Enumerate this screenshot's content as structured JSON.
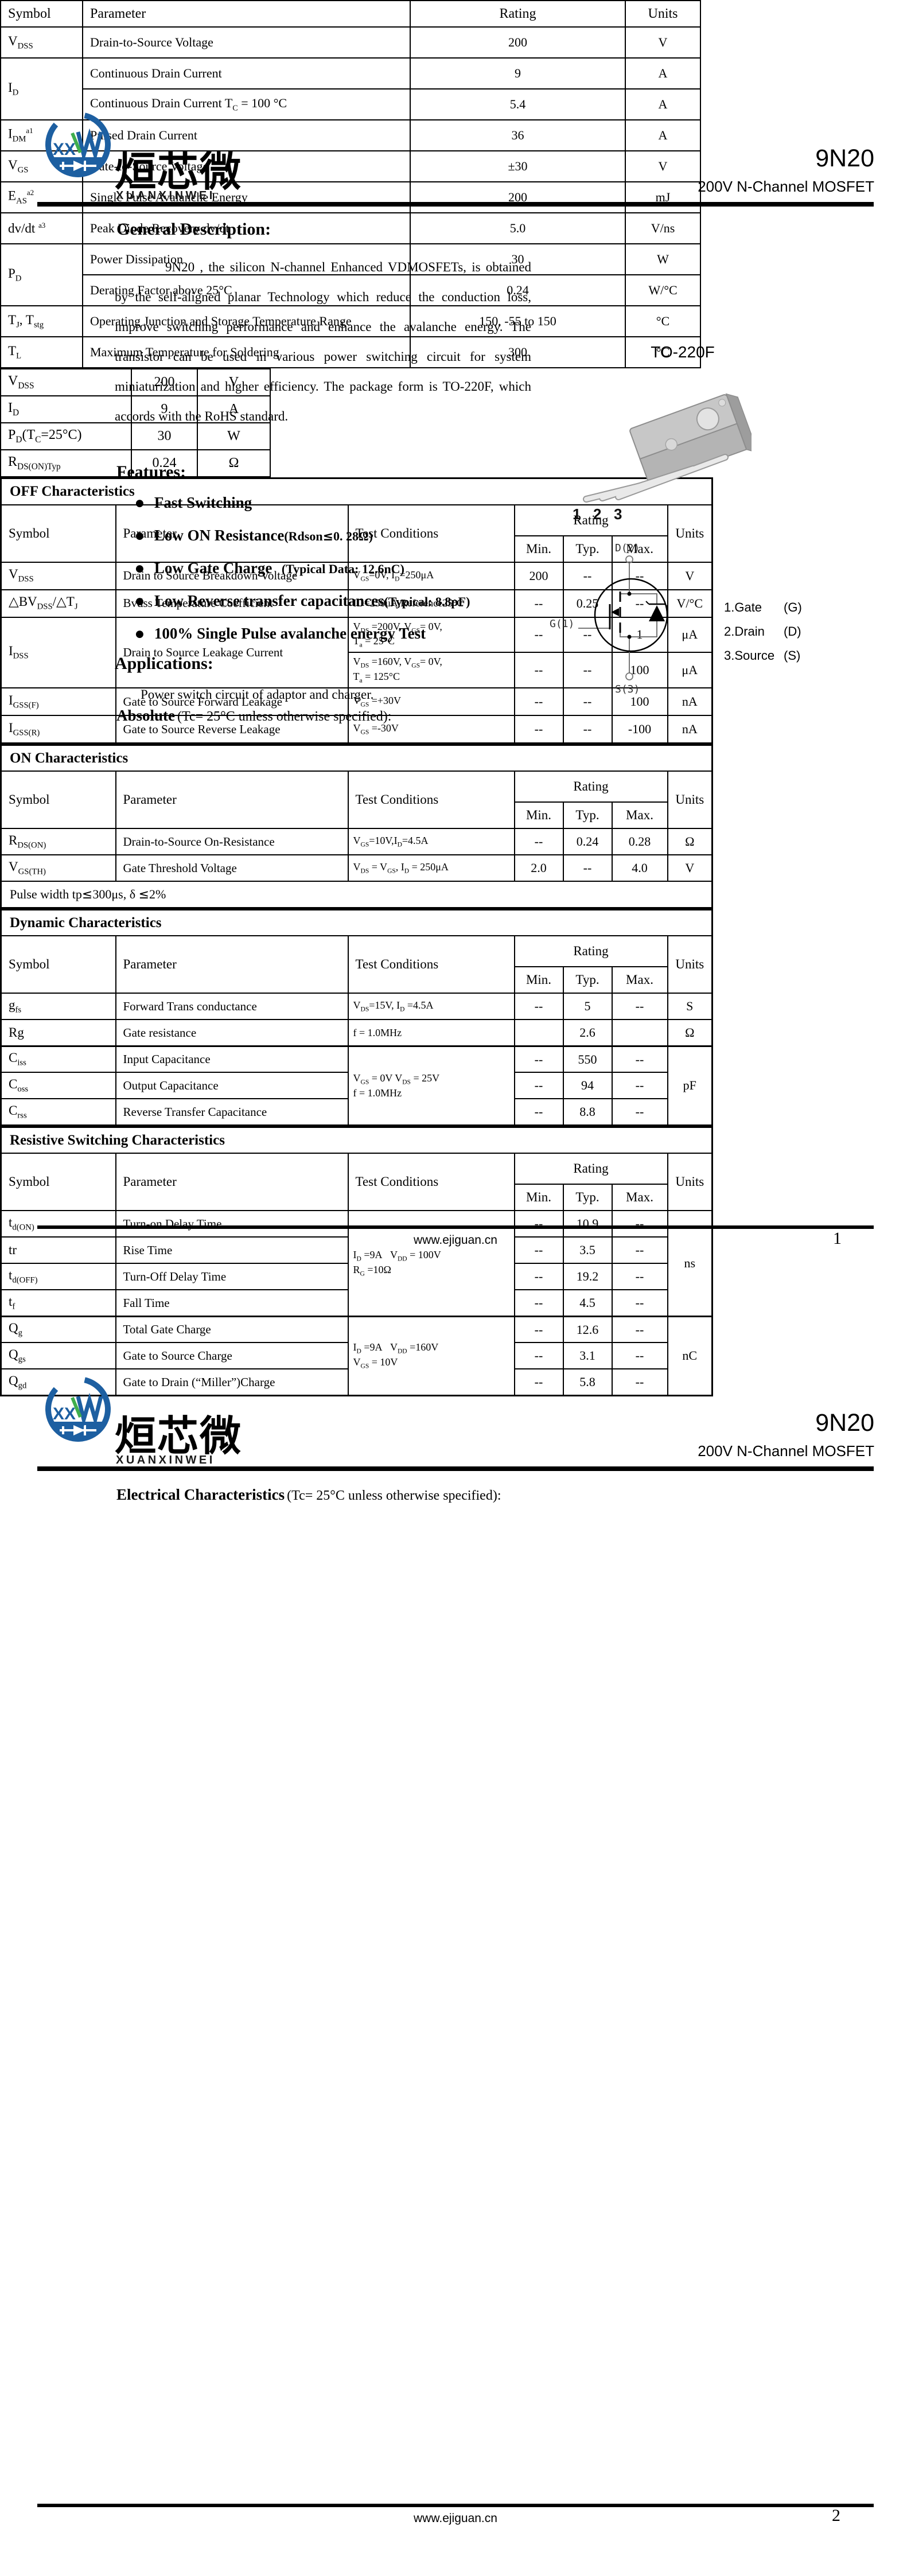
{
  "brand": {
    "cn": "烜芯微",
    "en": "XUANXINWEI",
    "initials": "XX"
  },
  "header": {
    "part": "9N20",
    "subtitle": "200V N-Channel MOSFET"
  },
  "footer": {
    "url": "www.ejiguan.cn",
    "page1": "1",
    "page2": "2"
  },
  "page1": {
    "general_title": "General Description:",
    "general_text": "9N20 , the silicon N-channel Enhanced VDMOSFETs, is obtained by the self-aligned planar Technology which reduce the conduction loss, improve switching performance and enhance the avalanche energy. The transistor can be used in various power switching circuit for system miniaturization and higher efficiency. The package form is TO-220F, which accords with the RoHS standard.",
    "features_title": "Features:",
    "features": [
      "Fast Switching",
      "Low ON Resistance<span class=\"bn\">(Rdson<span class=\"dj\">≤</span>0. 28Ω)</span>",
      "Low Gate Charge<span class=\"bn\">&nbsp;&nbsp;&nbsp;(Typical Data: 12.6nC)</span>",
      "Low Reverse transfer capacitances<span class=\"bn\">(Typical: 8.8pF)</span>",
      "100% Single Pulse avalanche energy Test"
    ],
    "applications_title": "Applications:",
    "applications_text": "Power switch circuit of adaptor and charger.",
    "absolute_bold": "Absolute",
    "absolute_rest": "(Tc= 25°C  unless otherwise specified):",
    "package_label": "TO-220F",
    "pins": [
      "1",
      "2",
      "3"
    ],
    "sym": {
      "d": "D(2)",
      "g": "G(1)",
      "s": "S(3)"
    },
    "legend": [
      {
        "n": "1.Gate",
        "s": "(G)"
      },
      {
        "n": "2.Drain",
        "s": "(D)"
      },
      {
        "n": "3.Source",
        "s": "(S)"
      }
    ],
    "spec_rows": [
      [
        {
          "h": "V<sub>DSS</sub>",
          "cl": "al"
        },
        "200",
        "V"
      ],
      [
        {
          "h": "I<sub>D</sub>",
          "cl": "al"
        },
        "9",
        "A"
      ],
      [
        {
          "h": "P<sub>D</sub>(T<sub>C</sub>=25°C)",
          "cl": "al"
        },
        "30",
        "W"
      ],
      [
        {
          "h": "R<sub>DS(ON)Typ</sub>",
          "cl": "al"
        },
        "0.24",
        "Ω"
      ]
    ],
    "abs_headers": [
      "Symbol",
      "Parameter",
      "Rating",
      "Units"
    ],
    "abs_rows": [
      [
        {
          "h": "V<sub>DSS</sub>",
          "cl": "al sy"
        },
        {
          "h": "Drain-to-Source Voltage",
          "cl": "al pa"
        },
        "200",
        "V"
      ],
      [
        {
          "h": "I<sub>D</sub>",
          "cl": "al sy",
          "rs": 2
        },
        {
          "h": "Continuous Drain Current",
          "cl": "al pa"
        },
        "9",
        "A"
      ],
      [
        {
          "h": "Continuous Drain Current T<sub>C</sub> = 100 °C",
          "cl": "al pa"
        },
        "5.4",
        "A"
      ],
      [
        {
          "h": "I<sub>DM</sub><sup class=\"an\">a1</sup>",
          "cl": "al sy"
        },
        {
          "h": "Pulsed Drain Current",
          "cl": "al pa"
        },
        "36",
        "A"
      ],
      [
        {
          "h": "V<sub>GS</sub>",
          "cl": "al sy"
        },
        {
          "h": "Gate-to-Source Voltage",
          "cl": "al pa"
        },
        "±30",
        "V"
      ],
      [
        {
          "h": "E<sub>AS</sub><sup class=\"an\">a2</sup>",
          "cl": "al sy"
        },
        {
          "h": "Single Pulse Avalanche Energy",
          "cl": "al pa"
        },
        "200",
        "mJ"
      ],
      [
        {
          "h": "dv/dt <sup class=\"an\">a3</sup>",
          "cl": "al sy"
        },
        {
          "h": "Peak Diode Recovery dv/dt",
          "cl": "al pa"
        },
        "5.0",
        "V/ns"
      ],
      [
        {
          "h": "P<sub>D</sub>",
          "cl": "al sy",
          "rs": 2
        },
        {
          "h": "Power Dissipation",
          "cl": "al pa"
        },
        "30",
        "W"
      ],
      [
        {
          "h": "Derating Factor above 25°C",
          "cl": "al pa"
        },
        "0.24",
        "W/°C"
      ],
      [
        {
          "h": "T<sub>J</sub>, T<sub>stg</sub>",
          "cl": "al sy"
        },
        {
          "h": "Operating Junction and Storage Temperature Range",
          "cl": "al pa"
        },
        "150, -55 to 150",
        "°C"
      ],
      [
        {
          "h": "T<sub>L</sub>",
          "cl": "al sy"
        },
        {
          "h": "Maximum Temperature for Soldering",
          "cl": "al pa"
        },
        "300",
        "°C"
      ]
    ]
  },
  "page2": {
    "elec_bold": "Electrical Characteristics",
    "elec_rest": "(Tc= 25°C  unless otherwise specified):",
    "cols": {
      "symbol": "Symbol",
      "parameter": "Parameter",
      "test": "Test Conditions",
      "rating": "Rating",
      "min": "Min.",
      "typ": "Typ.",
      "max": "Max.",
      "units": "Units"
    },
    "off": {
      "title": "OFF Characteristics",
      "rows": [
        [
          {
            "h": "V<sub>DSS</sub>",
            "cl": "al sy"
          },
          {
            "h": "Drain to Source Breakdown Voltage",
            "cl": "al pa"
          },
          {
            "h": "V<sub>GS</sub>=0V, I<sub>D</sub>=250μA",
            "cl": "al tc"
          },
          "200",
          "--",
          "--",
          "V"
        ],
        [
          {
            "h": "<span class=\"dj\">△</span>BV<sub>DSS</sub>/<span class=\"dj\">△</span>T<sub>J</sub>",
            "cl": "al sy"
          },
          {
            "h": "Bvdss Temperature Coefficient",
            "cl": "al pa"
          },
          {
            "h": "ID=250uA,Reference25°C",
            "cl": "al tc"
          },
          "--",
          "0.25",
          "--",
          "V/°C"
        ],
        {
          "cls": "h60",
          "cells": [
            {
              "h": "I<sub>DSS</sub>",
              "cl": "al sy",
              "rs": 2
            },
            {
              "h": "Drain to Source Leakage Current",
              "cl": "al pa",
              "rs": 2
            },
            {
              "h": "V<sub>DS</sub> =200V, V<sub>GS</sub>= 0V,<br>T<sub>a</sub> = 25°C",
              "cl": "al tc"
            },
            "--",
            "--",
            "1",
            "μA"
          ]
        },
        {
          "cls": "h60",
          "cells": [
            {
              "h": "V<sub>DS</sub> =160V, V<sub>GS</sub>= 0V,<br>T<sub>a</sub> = 125°C",
              "cl": "al tc"
            },
            "--",
            "--",
            "100",
            "μA"
          ]
        },
        [
          {
            "h": "I<sub>GSS(F)</sub>",
            "cl": "al sy"
          },
          {
            "h": "Gate to Source Forward Leakage",
            "cl": "al pa"
          },
          {
            "h": "V<sub>GS</sub> =+30V",
            "cl": "al tc"
          },
          "--",
          "--",
          "100",
          "nA"
        ],
        [
          {
            "h": "I<sub>GSS(R)</sub>",
            "cl": "al sy"
          },
          {
            "h": "Gate to Source Reverse Leakage",
            "cl": "al pa"
          },
          {
            "h": "V<sub>GS</sub> =-30V",
            "cl": "al tc"
          },
          "--",
          "--",
          "-100",
          "nA"
        ]
      ]
    },
    "on": {
      "title": "ON Characteristics",
      "rows": [
        [
          {
            "h": "R<sub>DS(ON)</sub>",
            "cl": "al sy"
          },
          {
            "h": "Drain-to-Source On-Resistance",
            "cl": "al pa"
          },
          {
            "h": "V<sub>GS</sub>=10V,I<sub>D</sub>=4.5A",
            "cl": "al tc"
          },
          "--",
          "0.24",
          "0.28",
          "Ω"
        ],
        [
          {
            "h": "V<sub>GS(TH)</sub>",
            "cl": "al sy"
          },
          {
            "h": "Gate Threshold Voltage",
            "cl": "al pa"
          },
          {
            "h": "V<sub>DS</sub> = V<sub>GS</sub>, I<sub>D</sub> = 250μA",
            "cl": "al tc"
          },
          "2.0",
          "--",
          "4.0",
          "V"
        ],
        [
          {
            "h": "Pulse width tp<span class=\"dj\">≤</span>300μs, δ <span class=\"dj\">≤</span>2%",
            "cs": 7,
            "cl": "note"
          }
        ]
      ]
    },
    "dyn": {
      "title": "Dynamic Characteristics",
      "rows": [
        [
          {
            "h": "g<sub>fs</sub>",
            "cl": "al sy"
          },
          {
            "h": "Forward Trans conductance",
            "cl": "al pa"
          },
          {
            "h": "V<sub>DS</sub>=15V, I<sub>D</sub> =4.5A",
            "cl": "al tc"
          },
          "--",
          "5",
          "--",
          "S"
        ],
        [
          {
            "h": "Rg",
            "cl": "al sy"
          },
          {
            "h": "Gate resistance",
            "cl": "al pa"
          },
          {
            "h": "f = 1.0MHz",
            "cl": "al tc"
          },
          "",
          "2.6",
          "",
          "Ω"
        ],
        {
          "cls": "hsep",
          "cells": [
            {
              "h": "C<sub>iss</sub>",
              "cl": "al sy"
            },
            {
              "h": "Input Capacitance",
              "cl": "al pa"
            },
            {
              "h": "V<sub>GS</sub> = 0V V<sub>DS</sub> = 25V<br>f = 1.0MHz",
              "cl": "al tc",
              "rs": 3
            },
            "--",
            "550",
            "--",
            {
              "h": "pF",
              "rs": 3
            }
          ]
        },
        [
          {
            "h": "C<sub>oss</sub>",
            "cl": "al sy"
          },
          {
            "h": "Output Capacitance",
            "cl": "al pa"
          },
          "--",
          "94",
          "--"
        ],
        [
          {
            "h": "C<sub>rss</sub>",
            "cl": "al sy"
          },
          {
            "h": "Reverse Transfer Capacitance",
            "cl": "al pa"
          },
          "--",
          "8.8",
          "--"
        ]
      ]
    },
    "res": {
      "title": "Resistive Switching Characteristics",
      "rows": [
        [
          {
            "h": "t<sub>d(ON)</sub>",
            "cl": "al sy"
          },
          {
            "h": "Turn-on Delay Time",
            "cl": "al pa"
          },
          {
            "h": "I<sub>D</sub> =9A&nbsp;&nbsp;&nbsp;V<sub>DD</sub> = 100V<br>R<sub>G</sub> =10Ω",
            "cl": "al tc",
            "rs": 4
          },
          "--",
          "10.9",
          "--",
          {
            "h": "ns",
            "rs": 4
          }
        ],
        [
          {
            "h": "tr",
            "cl": "al sy"
          },
          {
            "h": "Rise Time",
            "cl": "al pa"
          },
          "--",
          "3.5",
          "--"
        ],
        [
          {
            "h": "t<sub>d(OFF)</sub>",
            "cl": "al sy"
          },
          {
            "h": "Turn-Off Delay Time",
            "cl": "al pa"
          },
          "--",
          "19.2",
          "--"
        ],
        [
          {
            "h": "t<sub>f</sub>",
            "cl": "al sy"
          },
          {
            "h": "Fall Time",
            "cl": "al pa"
          },
          "--",
          "4.5",
          "--"
        ],
        {
          "cls": "hsep",
          "cells": [
            {
              "h": "Q<sub>g</sub>",
              "cl": "al sy"
            },
            {
              "h": "Total Gate Charge",
              "cl": "al pa"
            },
            {
              "h": "I<sub>D</sub> =9A&nbsp;&nbsp;&nbsp;V<sub>DD</sub> =160V<br>V<sub>GS</sub> = 10V",
              "cl": "al tc",
              "rs": 3
            },
            "--",
            "12.6",
            "--",
            {
              "h": "nC",
              "rs": 3
            }
          ]
        },
        [
          {
            "h": "Q<sub>gs</sub>",
            "cl": "al sy"
          },
          {
            "h": "Gate to Source Charge",
            "cl": "al pa"
          },
          "--",
          "3.1",
          "--"
        ],
        [
          {
            "h": "Q<sub>gd</sub>",
            "cl": "al sy"
          },
          {
            "h": "Gate to Drain (“Miller”)Charge",
            "cl": "al pa"
          },
          "--",
          "5.8",
          "--"
        ]
      ]
    }
  }
}
